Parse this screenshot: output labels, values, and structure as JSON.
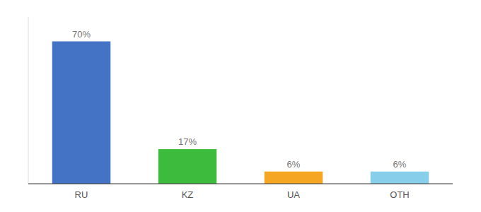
{
  "chart_data": {
    "type": "bar",
    "categories": [
      "RU",
      "KZ",
      "UA",
      "OTH"
    ],
    "values": [
      70,
      17,
      6,
      6
    ],
    "value_labels": [
      "70%",
      "17%",
      "6%",
      "6%"
    ],
    "colors": [
      "#4472c4",
      "#3dbb3d",
      "#f5a623",
      "#87ceeb"
    ],
    "ylim": [
      0,
      82
    ],
    "grid": false,
    "data_labels": true,
    "tick_labels": "x"
  }
}
